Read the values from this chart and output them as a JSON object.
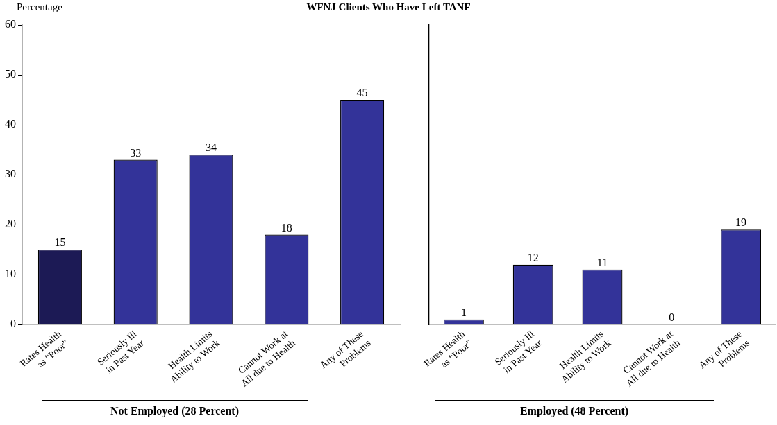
{
  "chart_data": [
    {
      "type": "bar",
      "title": "WFNJ Clients Who Have Left TANF",
      "ylabel": "Percentage",
      "xlabel": "Not Employed (28 Percent)",
      "categories": [
        "Rates Health as “Poor”",
        "Seriously Ill in Past Year",
        "Health Limits Ability to Work",
        "Cannot Work at All due to Health",
        "Any of These Problems"
      ],
      "values": [
        15,
        33,
        34,
        18,
        45
      ],
      "colors": [
        "#1c1a55",
        "#333399",
        "#333399",
        "#333399",
        "#333399"
      ],
      "ylim": [
        0,
        60
      ],
      "yticks": [
        0,
        10,
        20,
        30,
        40,
        50,
        60
      ],
      "grid": false,
      "legend": false,
      "data_labels": true
    },
    {
      "type": "bar",
      "xlabel": "Employed (48 Percent)",
      "categories": [
        "Rates Health as “Poor”",
        "Seriously Ill in Past Year",
        "Health Limits Ability to Work",
        "Cannot Work at All due to Health",
        "Any of These Problems"
      ],
      "values": [
        1,
        12,
        11,
        0,
        19
      ],
      "colors": [
        "#333399",
        "#333399",
        "#333399",
        "#333399",
        "#333399"
      ],
      "ylim": [
        0,
        60
      ],
      "yticks": [
        0,
        10,
        20,
        30,
        40,
        50,
        60
      ],
      "grid": false,
      "legend": false,
      "data_labels": true,
      "tick_labels": "x"
    }
  ]
}
